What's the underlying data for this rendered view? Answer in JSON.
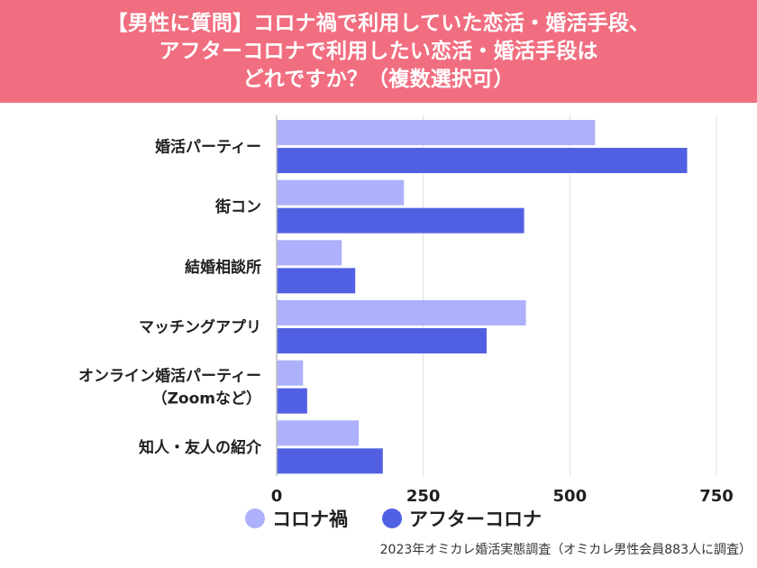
{
  "title": {
    "lines": [
      "【男性に質問】コロナ禍で利用していた恋活・婚活手段、",
      "アフターコロナで利用したい恋活・婚活手段は",
      "どれですか？（複数選択可）"
    ]
  },
  "source": "2023年オミカレ婚活実態調査（オミカレ男性会員883人に調査）",
  "colors": {
    "banner": "#f16e80",
    "series1": "#adb0fa",
    "series2": "#5160e3"
  },
  "chart_data": {
    "type": "bar",
    "orientation": "horizontal",
    "categories": [
      [
        "婚活パーティー"
      ],
      [
        "街コン"
      ],
      [
        "結婚相談所"
      ],
      [
        "マッチングアプリ"
      ],
      [
        "オンライン婚活パーティー",
        "（Zoomなど）"
      ],
      [
        "知人・友人の紹介"
      ]
    ],
    "series": [
      {
        "name": "コロナ禍",
        "values": [
          543,
          217,
          111,
          425,
          45,
          140
        ]
      },
      {
        "name": "アフターコロナ",
        "values": [
          700,
          422,
          134,
          358,
          52,
          181
        ]
      }
    ],
    "xlim": [
      0,
      750
    ],
    "xticks": [
      0,
      250,
      500,
      750
    ],
    "grid": true,
    "legend": "bottom"
  }
}
